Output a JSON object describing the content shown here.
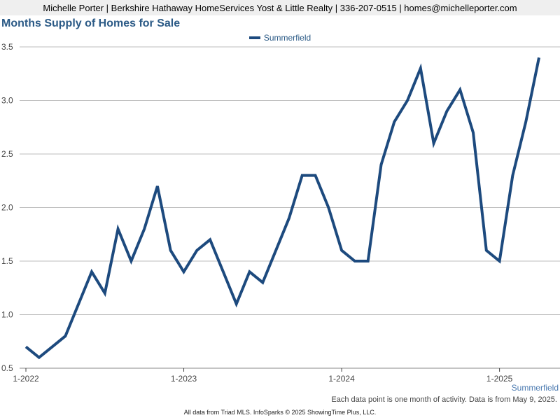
{
  "header": {
    "text": "Michelle Porter | Berkshire Hathaway HomeServices Yost & Little Realty | 336-207-0515 | homes@michelleporter.com"
  },
  "footer": {
    "series_caption": "Summerfield",
    "note": "Each data point is one month of activity. Data is from May 9, 2025.",
    "copyright": "All data from Triad MLS. InfoSparks © 2025 ShowingTime Plus, LLC."
  },
  "chart_data": {
    "type": "line",
    "title": "Months Supply of Homes for Sale",
    "xlabel": "",
    "ylabel": "",
    "legend": {
      "position": "top-center",
      "entries": [
        "Summerfield"
      ]
    },
    "grid": {
      "horizontal": true,
      "vertical": false
    },
    "x_tick_labels": [
      "1-2022",
      "1-2023",
      "1-2024",
      "1-2025"
    ],
    "x_tick_months": [
      "2022-01",
      "2023-01",
      "2024-01",
      "2025-01"
    ],
    "y_ticks": [
      "0.5",
      "1.0",
      "1.5",
      "2.0",
      "2.5",
      "3.0",
      "3.5"
    ],
    "ylim": [
      0.5,
      3.5
    ],
    "xlim": [
      "2022-01",
      "2025-05"
    ],
    "colors": {
      "series": "#1d4a7e",
      "grid": "#bdbdbd",
      "title": "#2b5a86"
    },
    "x": [
      "2022-01",
      "2022-02",
      "2022-03",
      "2022-04",
      "2022-05",
      "2022-06",
      "2022-07",
      "2022-08",
      "2022-09",
      "2022-10",
      "2022-11",
      "2022-12",
      "2023-01",
      "2023-02",
      "2023-03",
      "2023-04",
      "2023-05",
      "2023-06",
      "2023-07",
      "2023-08",
      "2023-09",
      "2023-10",
      "2023-11",
      "2023-12",
      "2024-01",
      "2024-02",
      "2024-03",
      "2024-04",
      "2024-05",
      "2024-06",
      "2024-07",
      "2024-08",
      "2024-09",
      "2024-10",
      "2024-11",
      "2024-12",
      "2025-01",
      "2025-02",
      "2025-03",
      "2025-04"
    ],
    "series": [
      {
        "name": "Summerfield",
        "values": [
          0.7,
          0.6,
          0.7,
          0.8,
          1.1,
          1.4,
          1.2,
          1.8,
          1.5,
          1.8,
          2.2,
          1.6,
          1.4,
          1.6,
          1.7,
          1.4,
          1.1,
          1.4,
          1.3,
          1.6,
          1.9,
          2.3,
          2.3,
          2.0,
          1.6,
          1.5,
          1.5,
          2.4,
          2.8,
          3.0,
          3.3,
          2.6,
          2.9,
          3.1,
          2.7,
          1.6,
          1.5,
          2.3,
          2.8,
          3.4
        ]
      }
    ]
  }
}
